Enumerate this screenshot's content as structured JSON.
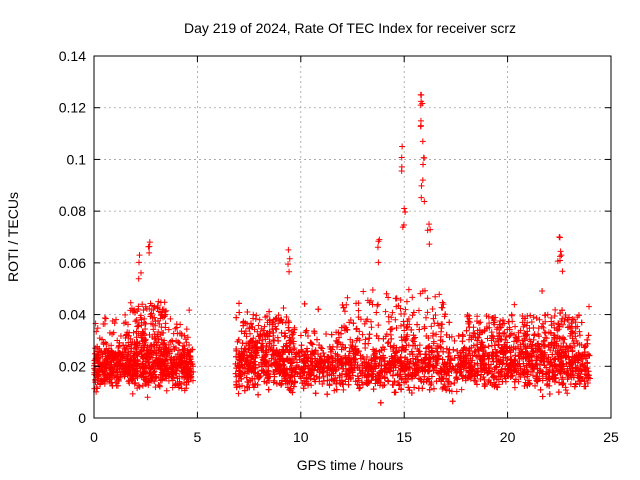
{
  "chart_data": {
    "type": "scatter",
    "title": "Day 219 of 2024, Rate Of TEC Index for receiver scrz",
    "xlabel": "GPS time / hours",
    "ylabel": "ROTI / TECUs",
    "xlim": [
      0,
      25
    ],
    "ylim": [
      0,
      0.14
    ],
    "xticks": [
      0,
      5,
      10,
      15,
      20,
      25
    ],
    "xtick_labels": [
      "0",
      "5",
      "10",
      "15",
      "20",
      "25"
    ],
    "yticks": [
      0,
      0.02,
      0.04,
      0.06,
      0.08,
      0.1,
      0.12,
      0.14
    ],
    "ytick_labels": [
      "0",
      "0.02",
      "0.04",
      "0.06",
      "0.08",
      "0.1",
      "0.12",
      "0.14"
    ],
    "grid": true,
    "marker": "+",
    "color": "#ff0000",
    "series": [
      {
        "name": "ROTI",
        "segments": [
          {
            "x_start": 0.0,
            "x_end": 4.8,
            "baseline": 0.02,
            "spread": 0.01
          },
          {
            "x_start": 6.8,
            "x_end": 24.0,
            "baseline": 0.02,
            "spread": 0.011
          }
        ],
        "peaks": [
          {
            "x": 2.7,
            "y": 0.068
          },
          {
            "x": 2.2,
            "y": 0.063
          },
          {
            "x": 9.4,
            "y": 0.065
          },
          {
            "x": 13.8,
            "y": 0.069
          },
          {
            "x": 14.9,
            "y": 0.105
          },
          {
            "x": 15.0,
            "y": 0.081
          },
          {
            "x": 15.8,
            "y": 0.125
          },
          {
            "x": 15.8,
            "y": 0.121
          },
          {
            "x": 15.9,
            "y": 0.107
          },
          {
            "x": 15.9,
            "y": 0.092
          },
          {
            "x": 16.2,
            "y": 0.075
          },
          {
            "x": 22.5,
            "y": 0.07
          },
          {
            "x": 22.6,
            "y": 0.063
          }
        ]
      }
    ]
  }
}
